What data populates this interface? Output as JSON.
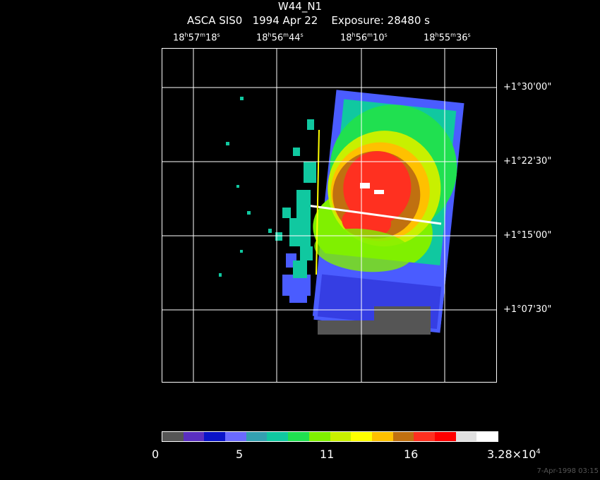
{
  "header": {
    "object": "W44_N1",
    "line2": "ASCA SIS0   1994 Apr 22    Exposure: 28480 s"
  },
  "ra_ticks": [
    {
      "h": "18",
      "m": "57",
      "s": "18"
    },
    {
      "h": "18",
      "m": "56",
      "s": "44"
    },
    {
      "h": "18",
      "m": "56",
      "s": "10"
    },
    {
      "h": "18",
      "m": "55",
      "s": "36"
    }
  ],
  "dec_ticks": [
    "+1°30'00\"",
    "+1°22'30\"",
    "+1°15'00\"",
    "+1°07'30\""
  ],
  "colorbar": {
    "colors": [
      "#555555",
      "#5a2fc0",
      "#0a14c8",
      "#6a6aff",
      "#33a0b0",
      "#10c8a0",
      "#20e050",
      "#80f000",
      "#c8f000",
      "#ffff00",
      "#ffc000",
      "#c07010",
      "#ff3020",
      "#ff0000",
      "#e0e0e0",
      "#ffffff"
    ],
    "labels": {
      "l0": "0",
      "l1": "5",
      "l2": "11",
      "l3": "16",
      "max_mant": "3.28×10",
      "max_exp": "4"
    }
  },
  "timestamp": "7-Apr-1998 03:15"
}
